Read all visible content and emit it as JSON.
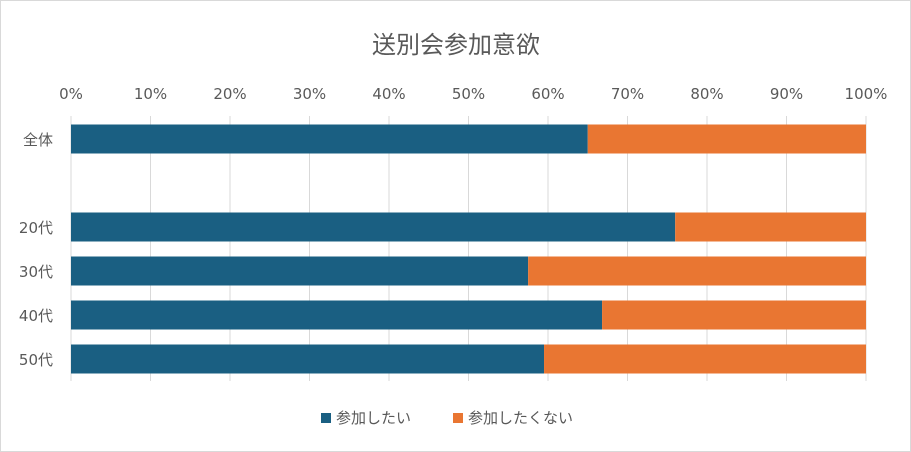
{
  "chart_data": {
    "type": "bar",
    "orientation": "horizontal",
    "stacked": "percent",
    "title": "送別会参加意欲",
    "xlabel": "",
    "ylabel": "",
    "categories": [
      "全体",
      "",
      "20代",
      "30代",
      "40代",
      "50代"
    ],
    "x_ticks": [
      "0%",
      "10%",
      "20%",
      "30%",
      "40%",
      "50%",
      "60%",
      "70%",
      "80%",
      "90%",
      "100%"
    ],
    "xlim": [
      0,
      100
    ],
    "x_axis_position": "top",
    "grid": true,
    "legend": "bottom",
    "series": [
      {
        "name": "参加したい",
        "color": "#1a5f82",
        "values": [
          65,
          null,
          76,
          57.5,
          66.8,
          59.5
        ]
      },
      {
        "name": "参加したくない",
        "color": "#e97632",
        "values": [
          35,
          null,
          24,
          42.5,
          33.2,
          40.5
        ]
      }
    ]
  }
}
